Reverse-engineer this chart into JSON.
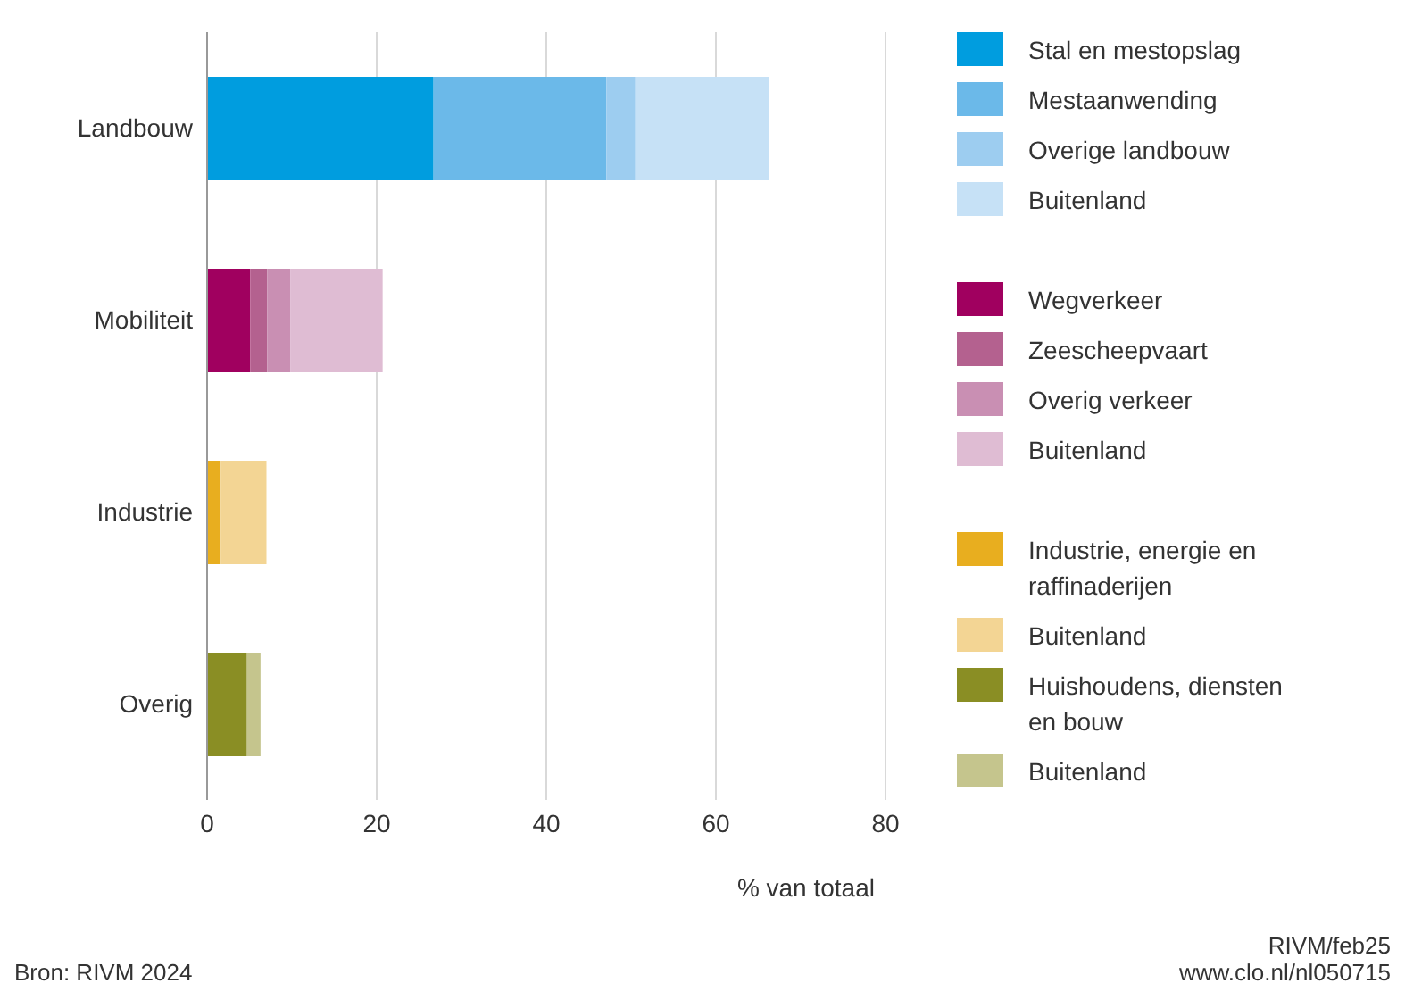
{
  "chart_data": {
    "type": "bar",
    "orientation": "horizontal",
    "stacked": true,
    "categories": [
      "Landbouw",
      "Mobiliteit",
      "Industrie",
      "Overig"
    ],
    "series": [
      {
        "name": "Stal en mestopslag",
        "color": "#009ddf",
        "values": [
          26.7,
          null,
          null,
          null
        ]
      },
      {
        "name": "Mestaanwending",
        "color": "#6bb9e9",
        "values": [
          20.4,
          null,
          null,
          null
        ]
      },
      {
        "name": "Overige landbouw",
        "color": "#9dcdf0",
        "values": [
          3.4,
          null,
          null,
          null
        ]
      },
      {
        "name": "Buitenland",
        "color": "#c6e1f6",
        "values": [
          15.8,
          null,
          null,
          null
        ]
      },
      {
        "name": "Wegverkeer",
        "color": "#a0005f",
        "values": [
          null,
          5.1,
          null,
          null
        ]
      },
      {
        "name": "Zeescheepvaart",
        "color": "#b4618f",
        "values": [
          null,
          2.0,
          null,
          null
        ]
      },
      {
        "name": "Overig verkeer",
        "color": "#c98fb3",
        "values": [
          null,
          2.7,
          null,
          null
        ]
      },
      {
        "name": "Buitenland",
        "color": "#dfbcd3",
        "values": [
          null,
          10.9,
          null,
          null
        ]
      },
      {
        "name": "Industrie, energie en raffinaderijen",
        "color": "#e8ae1f",
        "values": [
          null,
          null,
          1.6,
          null
        ]
      },
      {
        "name": "Buitenland",
        "color": "#f3d594",
        "values": [
          null,
          null,
          5.4,
          null
        ]
      },
      {
        "name": "Huishoudens, diensten en bouw",
        "color": "#8a8e24",
        "values": [
          null,
          null,
          null,
          4.7
        ]
      },
      {
        "name": "Buitenland",
        "color": "#c5c58d",
        "values": [
          null,
          null,
          null,
          1.6
        ]
      }
    ],
    "xlabel": "% van totaal",
    "xlim": [
      0,
      80
    ],
    "xticks": [
      0,
      20,
      40,
      60,
      80
    ],
    "grid": "x",
    "legend": "right",
    "annotations": [
      "Bron: RIVM 2024",
      "RIVM/feb25",
      "www.clo.nl/nl050715"
    ]
  }
}
